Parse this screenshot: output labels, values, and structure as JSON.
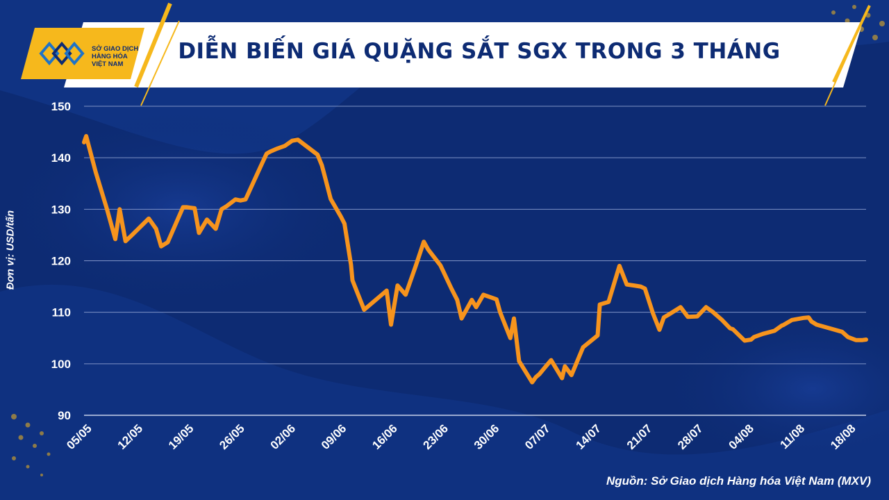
{
  "header": {
    "title": "DIỄN BIẾN GIÁ QUẶNG SẮT SGX TRONG 3 THÁNG",
    "logo_lines": [
      "SỞ GIAO DỊCH",
      "HÀNG HÓA",
      "VIỆT NAM"
    ]
  },
  "footer": {
    "source": "Nguồn: Sở Giao dịch Hàng hóa Việt Nam (MXV)"
  },
  "colors": {
    "background": "#0d2b73",
    "line": "#f7941d",
    "accent": "#f6b81c",
    "text": "#ffffff"
  },
  "chart_data": {
    "type": "line",
    "title": "DIỄN BIẾN GIÁ QUẶNG SẮT SGX TRONG 3 THÁNG",
    "ylabel": "Đơn vị: USD/tấn",
    "xlabel": "",
    "ylim": [
      90,
      150
    ],
    "yticks": [
      90,
      100,
      110,
      120,
      130,
      140,
      150
    ],
    "xtick_labels": [
      "05/05",
      "12/05",
      "19/05",
      "26/05",
      "02/06",
      "09/06",
      "16/06",
      "23/06",
      "30/06",
      "07/07",
      "14/07",
      "21/07",
      "28/07",
      "04/08",
      "11/08",
      "18/08"
    ],
    "grid": true,
    "x_days": [
      0,
      0.3,
      1.6,
      3.2,
      4.3,
      4.9,
      5.7,
      6.6,
      8.9,
      9.9,
      10.6,
      11.5,
      13.6,
      14.1,
      14.6,
      15.2,
      15.8,
      16.9,
      18.1,
      18.9,
      19.6,
      20.8,
      21.5,
      22.2,
      24.5,
      25.1,
      25.6,
      26.6,
      27.6,
      28.6,
      29.4,
      32.1,
      32.7,
      33.2,
      33.9,
      35.3,
      35.8,
      36.7,
      36.9,
      38.5,
      41.6,
      42.2,
      43.1,
      44.2,
      45.6,
      46.7,
      47.3,
      49.0,
      50.5,
      51.3,
      51.9,
      53.3,
      53.9,
      54.9,
      56.7,
      57.2,
      58.6,
      59.1,
      59.8,
      61.6,
      62.1,
      62.6,
      63.3,
      64.2,
      65.7,
      66.1,
      67.0,
      68.6,
      70.6,
      70.9,
      72.1,
      73.6,
      74.6,
      75.6,
      76.5,
      77.1,
      78.2,
      79.1,
      79.7,
      80.3,
      82.0,
      83.0,
      84.3,
      85.5,
      86.4,
      86.8,
      87.7,
      88.8,
      89.2,
      90.8,
      91.7,
      92.1,
      93.3,
      94.9,
      95.9,
      96.1,
      97.3,
      98.9,
      99.6,
      100.0,
      100.7,
      102.7,
      104.2,
      105.0,
      106.1,
      107.0,
      107.5
    ],
    "values": [
      143.0,
      144.2,
      137.2,
      129.8,
      124.2,
      130.0,
      123.8,
      125.0,
      128.2,
      126.2,
      122.8,
      123.6,
      130.4,
      130.4,
      130.3,
      130.2,
      125.4,
      128.0,
      126.2,
      130.0,
      130.6,
      131.9,
      131.7,
      131.9,
      139.0,
      140.8,
      141.2,
      141.8,
      142.3,
      143.3,
      143.5,
      140.6,
      138.5,
      135.8,
      132.0,
      128.6,
      127.2,
      119.2,
      116.2,
      110.5,
      114.2,
      107.6,
      115.2,
      113.4,
      119.0,
      123.7,
      122.2,
      119.1,
      114.6,
      112.4,
      108.8,
      112.4,
      111.0,
      113.4,
      112.5,
      110.0,
      105.0,
      108.8,
      100.5,
      96.4,
      97.4,
      98.0,
      99.2,
      100.7,
      97.2,
      99.5,
      97.8,
      103.2,
      105.5,
      111.5,
      112.0,
      119.0,
      115.4,
      115.2,
      115.0,
      114.6,
      109.8,
      106.6,
      109.0,
      109.5,
      111.0,
      109.1,
      109.2,
      111.0,
      110.1,
      109.6,
      108.5,
      106.9,
      106.7,
      104.5,
      104.7,
      105.2,
      105.8,
      106.4,
      107.4,
      107.5,
      108.5,
      108.9,
      109.0,
      108.2,
      107.6,
      106.8,
      106.2,
      105.2,
      104.6,
      104.6,
      104.7
    ]
  }
}
